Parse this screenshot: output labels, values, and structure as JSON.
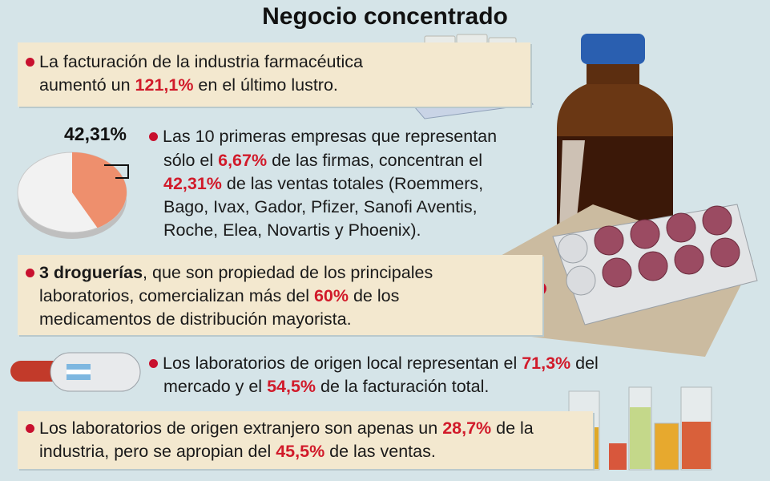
{
  "title": "Negocio concentrado",
  "pie": {
    "label": "42,31%",
    "value": 42.31,
    "colors": {
      "slice": "#ee8f6d",
      "rest": "#f2f2f2"
    }
  },
  "items": [
    {
      "line1_a": "La facturación de la industria farmacéutica",
      "line2_a": "aumentó un ",
      "line2_hl": "121,1%",
      "line2_b": " en el último lustro."
    },
    {
      "line1": "Las 10 primeras empresas que representan",
      "line2_a": "sólo el ",
      "line2_hl": "6,67%",
      "line2_b": " de las firmas, concentran el",
      "line3_hl": "42,31%",
      "line3_b": " de las ventas totales (Roemmers,",
      "line4": "Bago, Ivax, Gador, Pfizer, Sanofi Aventis,",
      "line5": "Roche, Elea, Novartis y Phoenix)."
    },
    {
      "line1_bold": "3 droguerías",
      "line1_b": ", que son propiedad de los principales",
      "line2_a": "laboratorios, comercializan más del ",
      "line2_hl": "60%",
      "line2_b": " de los",
      "line3": "medicamentos de distribución mayorista."
    },
    {
      "line1_a": "Los laboratorios de origen local representan el ",
      "line1_hl": "71,3%",
      "line1_b": " del",
      "line2_a": "mercado y el ",
      "line2_hl": "54,5%",
      "line2_b": " de la facturación total."
    },
    {
      "line1_a": "Los laboratorios de origen extranjero son apenas un ",
      "line1_hl": "28,7%",
      "line1_b": " de la",
      "line2_a": "industria, pero se apropian del ",
      "line2_hl": "45,5%",
      "line2_b": " de las ventas."
    }
  ],
  "colors": {
    "highlight": "#d11a2a",
    "bullet": "#c8102e",
    "box": "#f3e8cf",
    "background": "#d5e4e8"
  },
  "icons": [
    "pill-bottles-icon",
    "medicine-bottle-icon",
    "blister-pack-icon",
    "capsule-icon",
    "test-tubes-icon"
  ]
}
